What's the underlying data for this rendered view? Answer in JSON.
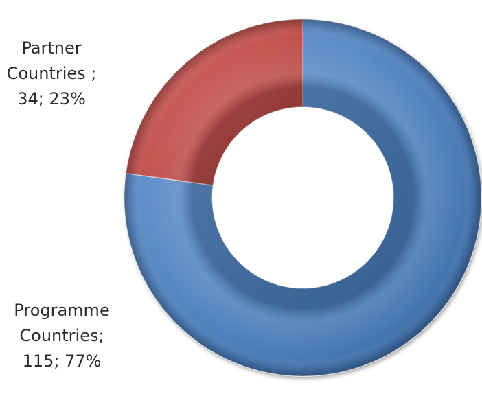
{
  "chart_data": {
    "type": "pie",
    "variant": "donut",
    "slices": [
      {
        "name_lines": [
          "Programme",
          "Countries;"
        ],
        "value": 115,
        "percent": "77%",
        "value_line": "115; 77%",
        "color": "#4f81bd"
      },
      {
        "name_lines": [
          "Partner",
          "Countries ;"
        ],
        "value": 34,
        "percent": "23%",
        "value_line": "34; 23%",
        "color": "#c0504d"
      }
    ],
    "start_angle": "12 o'clock",
    "direction": "clockwise",
    "legend": "none",
    "data_labels": "outside-left"
  }
}
